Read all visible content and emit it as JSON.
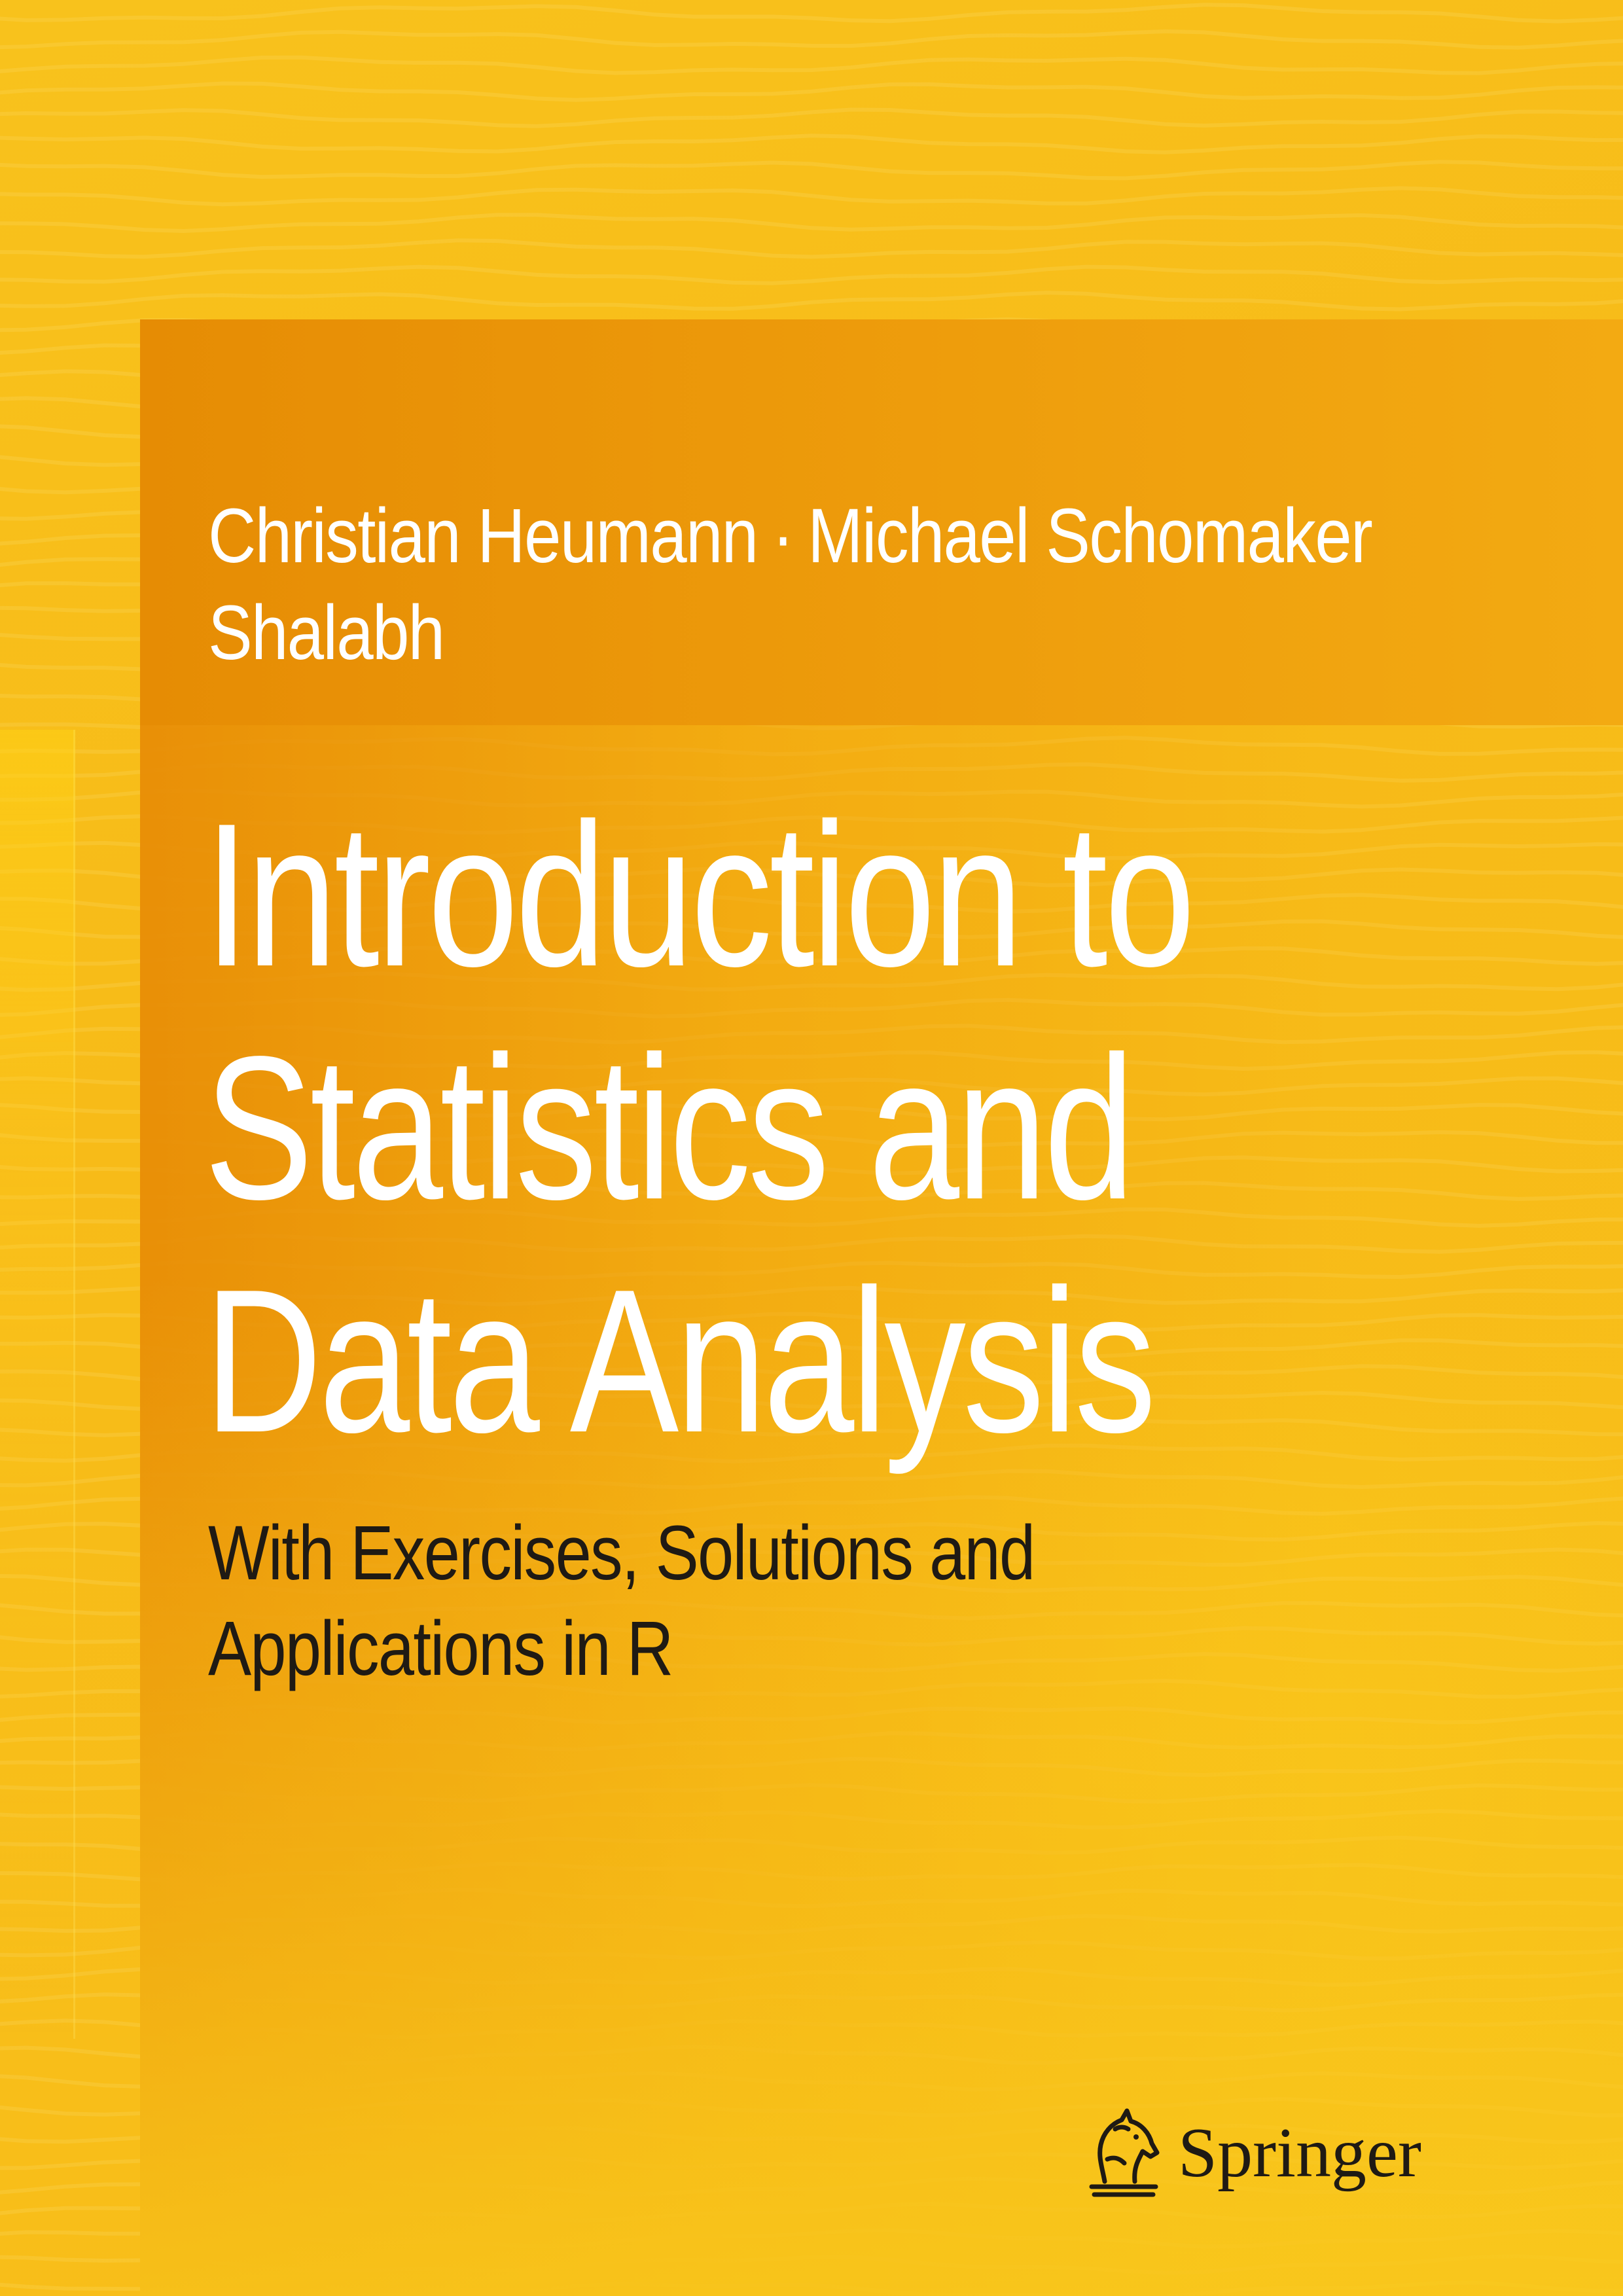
{
  "book": {
    "authors_line1_a": "Christian Heumann",
    "authors_separator": "·",
    "authors_line1_b": "Michael Schomaker",
    "authors_line2": "Shalabh",
    "title_lines": [
      "Introduction to",
      "Statistics and",
      "Data Analysis"
    ],
    "subtitle_lines": [
      "With Exercises, Solutions and",
      "Applications in R"
    ],
    "publisher": "Springer",
    "publisher_logo_icon": "springer-horse-logo-icon"
  },
  "colors": {
    "background": "#f9bf16",
    "author_band": "#e68c04",
    "title_text": "#ffffff",
    "subtitle_text": "#1f1a14"
  }
}
